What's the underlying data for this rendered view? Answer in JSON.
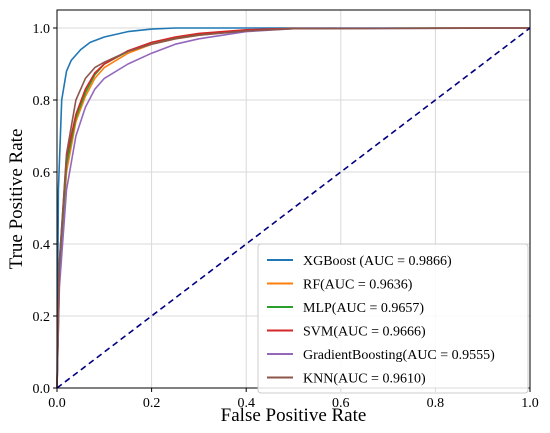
{
  "chart_data": {
    "type": "line",
    "title": "",
    "xlabel": "False Positive Rate",
    "ylabel": "True Positive Rate",
    "xlim": [
      0.0,
      1.0
    ],
    "ylim": [
      0.0,
      1.05
    ],
    "xticks": [
      "0.0",
      "0.2",
      "0.4",
      "0.6",
      "0.8",
      "1.0"
    ],
    "yticks": [
      "0.0",
      "0.2",
      "0.4",
      "0.6",
      "0.8",
      "1.0"
    ],
    "grid": true,
    "legend_position": "bottom-right",
    "series": [
      {
        "name": "XGBoost (AUC = 0.9866)",
        "color": "#1f77b4",
        "x": [
          0,
          0.003,
          0.01,
          0.02,
          0.03,
          0.05,
          0.07,
          0.1,
          0.15,
          0.2,
          0.25,
          0.3,
          1.0
        ],
        "y": [
          0,
          0.55,
          0.8,
          0.88,
          0.91,
          0.94,
          0.96,
          0.975,
          0.99,
          0.997,
          1.0,
          1.0,
          1.0
        ]
      },
      {
        "name": "RF(AUC = 0.9636)",
        "color": "#ff7f0e",
        "x": [
          0,
          0.005,
          0.02,
          0.04,
          0.06,
          0.08,
          0.1,
          0.15,
          0.2,
          0.25,
          0.3,
          0.4,
          0.5,
          1.0
        ],
        "y": [
          0,
          0.3,
          0.6,
          0.74,
          0.81,
          0.86,
          0.89,
          0.93,
          0.955,
          0.97,
          0.98,
          0.993,
          0.999,
          1.0
        ]
      },
      {
        "name": "MLP(AUC = 0.9657)",
        "color": "#2ca02c",
        "x": [
          0,
          0.005,
          0.02,
          0.04,
          0.06,
          0.08,
          0.1,
          0.15,
          0.2,
          0.25,
          0.3,
          0.4,
          0.5,
          1.0
        ],
        "y": [
          0,
          0.32,
          0.62,
          0.75,
          0.82,
          0.87,
          0.9,
          0.935,
          0.96,
          0.973,
          0.983,
          0.994,
          0.999,
          1.0
        ]
      },
      {
        "name": "SVM(AUC = 0.9666)",
        "color": "#d62728",
        "x": [
          0,
          0.005,
          0.02,
          0.04,
          0.06,
          0.08,
          0.1,
          0.15,
          0.2,
          0.25,
          0.3,
          0.4,
          0.5,
          1.0
        ],
        "y": [
          0,
          0.35,
          0.64,
          0.76,
          0.83,
          0.875,
          0.9,
          0.937,
          0.96,
          0.975,
          0.985,
          0.995,
          0.999,
          1.0
        ]
      },
      {
        "name": "GradientBoosting(AUC = 0.9555)",
        "color": "#9467bd",
        "x": [
          0,
          0.005,
          0.02,
          0.04,
          0.06,
          0.08,
          0.1,
          0.15,
          0.2,
          0.25,
          0.3,
          0.35,
          0.4,
          0.5,
          1.0
        ],
        "y": [
          0,
          0.28,
          0.55,
          0.7,
          0.78,
          0.83,
          0.86,
          0.9,
          0.93,
          0.955,
          0.97,
          0.98,
          0.99,
          0.998,
          1.0
        ]
      },
      {
        "name": "KNN(AUC = 0.9610)",
        "color": "#8c564b",
        "x": [
          0,
          0.005,
          0.02,
          0.04,
          0.06,
          0.08,
          0.1,
          0.15,
          0.2,
          0.25,
          0.3,
          0.4,
          0.5,
          1.0
        ],
        "y": [
          0,
          0.35,
          0.65,
          0.8,
          0.86,
          0.89,
          0.905,
          0.935,
          0.955,
          0.97,
          0.98,
          0.992,
          0.998,
          1.0
        ]
      },
      {
        "name": "",
        "color": "#000080",
        "dashed": true,
        "x": [
          0,
          1
        ],
        "y": [
          0,
          1
        ]
      }
    ]
  }
}
